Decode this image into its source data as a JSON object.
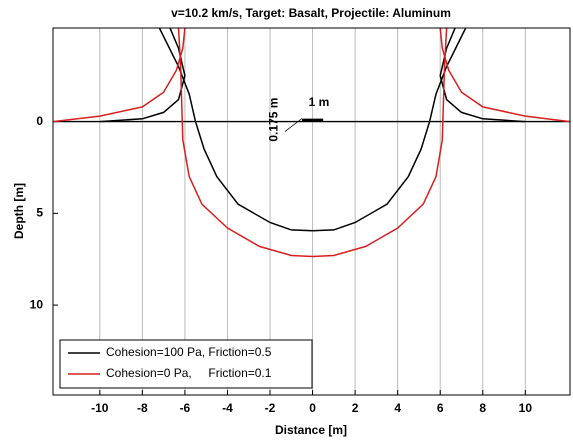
{
  "chart_data": {
    "type": "line",
    "title": "v=10.2 km/s,   Target: Basalt,   Projectile: Aluminum",
    "xlabel": "Distance [m]",
    "ylabel": "Depth [m]",
    "annotations": [
      "1 m",
      "0.175 m"
    ],
    "xlim": [
      -12.2,
      12.1
    ],
    "ylim": [
      -5.1,
      14.9
    ],
    "y_inverted": true,
    "xticks": [
      -10,
      -8,
      -6,
      -4,
      -2,
      0,
      2,
      4,
      6,
      8,
      10
    ],
    "yticks": [
      0,
      5,
      10
    ],
    "grid": true,
    "zero_line": true,
    "legend": "lower left",
    "series": [
      {
        "name": "Cohesion=100 Pa, Friction=0.5",
        "color": "#000000",
        "x": [
          -7.2,
          -6.3,
          -5.8,
          -5.5,
          -5.1,
          -4.5,
          -3.5,
          -2,
          -1,
          0,
          1,
          2,
          3.5,
          4.5,
          5.1,
          5.5,
          5.8,
          6.3,
          7.2,
          null,
          -10,
          -8,
          -7,
          -6.3,
          -6.0,
          -6.3,
          -6.7,
          null,
          6.7,
          6.3,
          6.0,
          6.3,
          7,
          8,
          10
        ],
        "values": [
          -5.1,
          -3,
          -1.5,
          0,
          1.5,
          3,
          4.5,
          5.5,
          5.9,
          5.95,
          5.9,
          5.5,
          4.5,
          3,
          1.5,
          0,
          -1.5,
          -3,
          -5.1,
          null,
          0,
          -0.15,
          -0.5,
          -1.2,
          -2.5,
          -4,
          -5.1,
          null,
          -5.1,
          -4,
          -2.5,
          -1.2,
          -0.5,
          -0.15,
          0
        ]
      },
      {
        "name": "Cohesion=0 Pa,     Friction=0.1",
        "color": "#d62020",
        "x": [
          -6.3,
          -6.2,
          -6.15,
          -6.1,
          -5.8,
          -5.2,
          -4,
          -2.5,
          -1,
          0,
          1,
          2.5,
          4,
          5.2,
          5.8,
          6.1,
          6.15,
          6.2,
          6.3,
          null,
          -12.2,
          -10,
          -8,
          -7,
          -6.4,
          -6.1,
          -6.0,
          null,
          6.0,
          6.1,
          6.4,
          7,
          8,
          10,
          12.1
        ],
        "values": [
          -5.1,
          -3,
          -1,
          1,
          3,
          4.5,
          5.8,
          6.8,
          7.3,
          7.35,
          7.3,
          6.8,
          5.8,
          4.5,
          3,
          1,
          -1,
          -3,
          -5.1,
          null,
          0,
          -0.3,
          -0.8,
          -1.6,
          -2.8,
          -4,
          -5.1,
          null,
          -5.1,
          -4,
          -2.8,
          -1.6,
          -0.8,
          -0.3,
          0
        ]
      }
    ]
  }
}
